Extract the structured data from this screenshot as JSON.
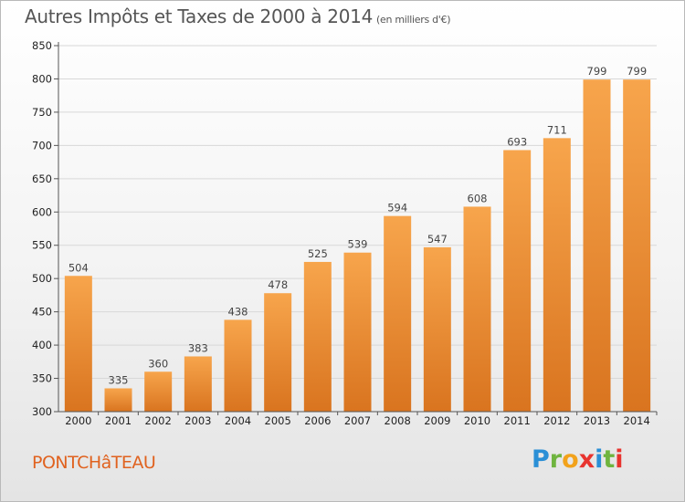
{
  "title": "Autres Impôts et Taxes de 2000 à 2014",
  "subtitle": "(en milliers d'€)",
  "commune": "PONTCHâTEAU",
  "logo": {
    "letters": [
      "P",
      "r",
      "o",
      "x",
      "i",
      "t",
      "i"
    ],
    "colors": [
      "#2a8fd6",
      "#6fb43f",
      "#f2a21b",
      "#e8342f",
      "#2a8fd6",
      "#6fb43f",
      "#e8342f"
    ]
  },
  "colors": {
    "bar_light": "#f7a54c",
    "bar_dark": "#d9741f",
    "grid": "#d8d8d8",
    "axis": "#555555",
    "title": "#555555",
    "commune": "#e0621f"
  },
  "chart_data": {
    "type": "bar",
    "categories": [
      "2000",
      "2001",
      "2002",
      "2003",
      "2004",
      "2005",
      "2006",
      "2007",
      "2008",
      "2009",
      "2010",
      "2011",
      "2012",
      "2013",
      "2014"
    ],
    "values": [
      504,
      335,
      360,
      383,
      438,
      478,
      525,
      539,
      594,
      547,
      608,
      693,
      711,
      799,
      799
    ],
    "ylim": [
      300,
      850
    ],
    "yticks": [
      300,
      350,
      400,
      450,
      500,
      550,
      600,
      650,
      700,
      750,
      800,
      850
    ],
    "grid": true,
    "title": "Autres Impôts et Taxes de 2000 à 2014",
    "xlabel": "",
    "ylabel": ""
  }
}
